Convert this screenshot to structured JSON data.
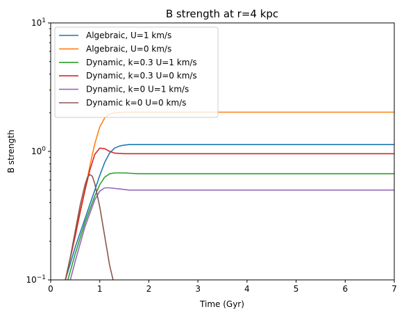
{
  "chart_data": {
    "type": "line",
    "title": "B strength at r=4 kpc",
    "xlabel": "Time (Gyr)",
    "ylabel": "B strength",
    "xlim": [
      0,
      7
    ],
    "ylim": [
      0.1,
      10
    ],
    "yscale": "log",
    "grid": false,
    "legend_position": "top-left",
    "x_ticks": [
      {
        "value": 0,
        "label": "0"
      },
      {
        "value": 1,
        "label": "1"
      },
      {
        "value": 2,
        "label": "2"
      },
      {
        "value": 3,
        "label": "3"
      },
      {
        "value": 4,
        "label": "4"
      },
      {
        "value": 5,
        "label": "5"
      },
      {
        "value": 6,
        "label": "6"
      },
      {
        "value": 7,
        "label": "7"
      }
    ],
    "y_ticks": [
      {
        "value": 0.1,
        "base": "10",
        "exp": "−1"
      },
      {
        "value": 1,
        "base": "10",
        "exp": "0"
      },
      {
        "value": 10,
        "base": "10",
        "exp": "1"
      }
    ],
    "series": [
      {
        "name": "Algebraic, U=1 km/s",
        "color": "#1f77b4",
        "x": [
          0.3,
          0.5,
          0.7,
          0.9,
          1.0,
          1.1,
          1.2,
          1.3,
          1.4,
          1.5,
          1.6,
          1.8,
          2.0,
          3.0,
          5.0,
          7.0
        ],
        "y": [
          0.1,
          0.18,
          0.3,
          0.5,
          0.65,
          0.82,
          0.97,
          1.06,
          1.1,
          1.12,
          1.13,
          1.13,
          1.13,
          1.13,
          1.13,
          1.13
        ]
      },
      {
        "name": "Algebraic, U=0 km/s",
        "color": "#ff7f0e",
        "x": [
          0.3,
          0.5,
          0.7,
          0.8,
          0.9,
          1.0,
          1.1,
          1.2,
          1.3,
          1.5,
          2.0,
          3.0,
          5.0,
          7.0
        ],
        "y": [
          0.1,
          0.22,
          0.5,
          0.78,
          1.15,
          1.55,
          1.82,
          1.95,
          2.0,
          2.02,
          2.02,
          2.02,
          2.02,
          2.02
        ]
      },
      {
        "name": "Dynamic, k=0.3 U=1 km/s",
        "color": "#2ca02c",
        "x": [
          0.35,
          0.5,
          0.7,
          0.9,
          1.0,
          1.1,
          1.2,
          1.3,
          1.5,
          1.8,
          2.0,
          3.0,
          5.0,
          7.0
        ],
        "y": [
          0.1,
          0.16,
          0.28,
          0.45,
          0.55,
          0.63,
          0.67,
          0.68,
          0.68,
          0.67,
          0.67,
          0.67,
          0.67,
          0.67
        ]
      },
      {
        "name": "Dynamic, k=0.3 U=0 km/s",
        "color": "#d62728",
        "x": [
          0.3,
          0.5,
          0.6,
          0.7,
          0.8,
          0.9,
          1.0,
          1.1,
          1.2,
          1.3,
          1.5,
          1.8,
          2.0,
          3.0,
          5.0,
          7.0
        ],
        "y": [
          0.1,
          0.22,
          0.34,
          0.5,
          0.72,
          0.95,
          1.06,
          1.05,
          1.0,
          0.97,
          0.96,
          0.96,
          0.96,
          0.96,
          0.96,
          0.96
        ]
      },
      {
        "name": "Dynamic, k=0 U=1 km/s",
        "color": "#9467bd",
        "x": [
          0.4,
          0.5,
          0.7,
          0.9,
          1.0,
          1.1,
          1.2,
          1.4,
          1.6,
          2.0,
          3.0,
          5.0,
          7.0
        ],
        "y": [
          0.1,
          0.14,
          0.26,
          0.42,
          0.49,
          0.52,
          0.52,
          0.51,
          0.5,
          0.5,
          0.5,
          0.5,
          0.5
        ]
      },
      {
        "name": "Dynamic k=0 U=0 km/s",
        "color": "#8c564b",
        "x": [
          0.3,
          0.4,
          0.5,
          0.6,
          0.7,
          0.75,
          0.8,
          0.85,
          0.9,
          1.0,
          1.1,
          1.2,
          1.3
        ],
        "y": [
          0.1,
          0.15,
          0.24,
          0.38,
          0.55,
          0.63,
          0.66,
          0.64,
          0.56,
          0.37,
          0.22,
          0.13,
          0.09
        ]
      }
    ]
  }
}
